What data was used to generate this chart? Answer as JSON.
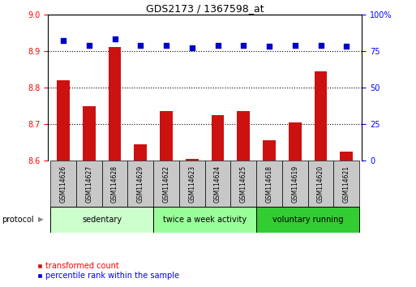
{
  "title": "GDS2173 / 1367598_at",
  "samples": [
    "GSM114626",
    "GSM114627",
    "GSM114628",
    "GSM114629",
    "GSM114622",
    "GSM114623",
    "GSM114624",
    "GSM114625",
    "GSM114618",
    "GSM114619",
    "GSM114620",
    "GSM114621"
  ],
  "transformed_count": [
    8.82,
    8.75,
    8.91,
    8.645,
    8.735,
    8.605,
    8.725,
    8.735,
    8.655,
    8.705,
    8.845,
    8.625
  ],
  "percentile_rank": [
    82,
    79,
    83,
    79,
    79,
    77,
    79,
    79,
    78,
    79,
    79,
    78
  ],
  "ylim_left": [
    8.6,
    9.0
  ],
  "ylim_right": [
    0,
    100
  ],
  "yticks_left": [
    8.6,
    8.7,
    8.8,
    8.9,
    9.0
  ],
  "yticks_right": [
    0,
    25,
    50,
    75,
    100
  ],
  "groups": [
    {
      "label": "sedentary",
      "indices": [
        0,
        1,
        2,
        3
      ],
      "color": "#ccffcc"
    },
    {
      "label": "twice a week activity",
      "indices": [
        4,
        5,
        6,
        7
      ],
      "color": "#99ff99"
    },
    {
      "label": "voluntary running",
      "indices": [
        8,
        9,
        10,
        11
      ],
      "color": "#33cc33"
    }
  ],
  "bar_color": "#cc1111",
  "dot_color": "#0000cc",
  "bar_width": 0.5,
  "legend_bar_label": "transformed count",
  "legend_dot_label": "percentile rank within the sample",
  "protocol_label": "protocol",
  "label_box_color": "#c8c8c8"
}
